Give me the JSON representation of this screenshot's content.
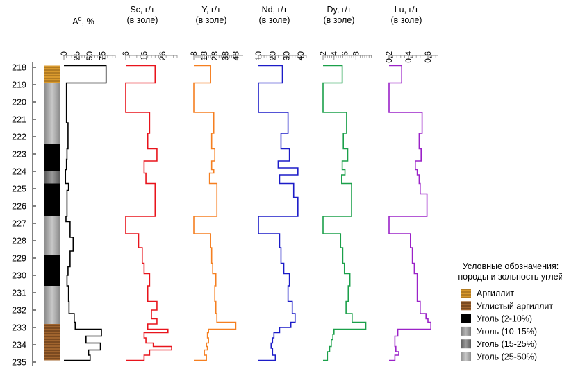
{
  "depth_axis": {
    "min": 218,
    "max": 235,
    "ticks": [
      218,
      219,
      220,
      221,
      222,
      223,
      224,
      225,
      226,
      227,
      228,
      229,
      230,
      231,
      232,
      233,
      234,
      235
    ]
  },
  "chart_data": [
    {
      "type": "line",
      "panel": "ash",
      "title_main": "A",
      "title_sup": "d",
      "title_rest": ", %",
      "title_line2": "",
      "color": "#000000",
      "xlim": [
        0,
        100
      ],
      "ticks": [
        "0",
        "25",
        "50",
        "75"
      ],
      "tick_values": [
        0,
        25,
        50,
        75
      ],
      "ylabel": "",
      "series": [
        {
          "y": [
            217.9,
            218.9,
            221.2,
            222.7,
            223.3,
            223.9,
            224.7,
            225.1,
            226.6,
            226.9,
            227.8,
            228.6,
            229.5,
            230.0,
            230.6,
            231.5,
            232.2,
            232.7,
            233.1,
            233.5,
            233.9,
            234.3,
            234.6,
            234.9
          ],
          "x": [
            82,
            5,
            8,
            6,
            5,
            3,
            9,
            6,
            4,
            12,
            18,
            12,
            8,
            6,
            9,
            10,
            20,
            22,
            73,
            43,
            71,
            48,
            51,
            46
          ]
        }
      ]
    },
    {
      "type": "line",
      "panel": "Sc",
      "title_main": "Sc, г/т",
      "title_line2": "(в золе)",
      "color": "#e8141c",
      "xlim": [
        6,
        34
      ],
      "ticks": [
        "6",
        "16",
        "26"
      ],
      "tick_values": [
        6,
        16,
        26
      ],
      "series": [
        {
          "y": [
            217.9,
            218.9,
            220.6,
            221.8,
            222.7,
            223.4,
            224.1,
            224.7,
            226.6,
            227.6,
            228.4,
            229.3,
            229.9,
            230.6,
            231.5,
            232.0,
            232.5,
            232.8,
            233.1,
            233.3,
            233.6,
            233.9,
            234.1,
            234.3,
            234.6,
            234.9
          ],
          "x": [
            22,
            6,
            19,
            18,
            23,
            16,
            17,
            22,
            6,
            13,
            15,
            16,
            19,
            18,
            23,
            20,
            23,
            18,
            29,
            16,
            17,
            21,
            31,
            19,
            16,
            16
          ]
        }
      ]
    },
    {
      "type": "line",
      "panel": "Y",
      "title_main": "Y, г/т",
      "title_line2": "(в золе)",
      "color": "#f57f20",
      "xlim": [
        8,
        55
      ],
      "ticks": [
        "8",
        "18",
        "28",
        "38",
        "48"
      ],
      "tick_values": [
        8,
        18,
        28,
        38,
        48
      ],
      "series": [
        {
          "y": [
            217.9,
            218.9,
            220.6,
            221.8,
            222.7,
            223.4,
            223.9,
            224.1,
            224.7,
            226.6,
            227.6,
            228.4,
            229.3,
            229.9,
            230.6,
            231.5,
            232.2,
            232.7,
            233.1,
            233.3,
            233.6,
            233.9,
            234.1,
            234.3,
            234.6,
            234.9
          ],
          "x": [
            24,
            8,
            27,
            25,
            28,
            25,
            27,
            23,
            30,
            8,
            24,
            25,
            26,
            29,
            28,
            29,
            30,
            48,
            22,
            21,
            22,
            20,
            21,
            18,
            20,
            20
          ]
        }
      ]
    },
    {
      "type": "line",
      "panel": "Nd",
      "title_main": "Nd, г/т",
      "title_line2": "(в золе)",
      "color": "#1c1cc8",
      "xlim": [
        10,
        44
      ],
      "ticks": [
        "10",
        "20",
        "30",
        "40"
      ],
      "tick_values": [
        10,
        20,
        30,
        40
      ],
      "series": [
        {
          "y": [
            217.9,
            218.9,
            220.6,
            221.8,
            222.7,
            223.4,
            223.8,
            224.2,
            224.7,
            225.5,
            226.6,
            227.6,
            228.4,
            229.3,
            229.9,
            230.6,
            231.5,
            232.2,
            232.7,
            233.0,
            233.3,
            233.6,
            233.9,
            234.2,
            234.6,
            234.9
          ],
          "x": [
            27,
            10,
            31,
            26,
            32,
            24,
            38,
            25,
            35,
            38,
            10,
            25,
            26,
            28,
            32,
            31,
            34,
            36,
            33,
            25,
            21,
            20,
            19,
            20,
            22,
            10
          ]
        }
      ]
    },
    {
      "type": "line",
      "panel": "Dy",
      "title_main": "Dy, г/т",
      "title_line2": "(в золе)",
      "color": "#1ba04a",
      "xlim": [
        2,
        11
      ],
      "ticks": [
        "2",
        "4",
        "6",
        "8"
      ],
      "tick_values": [
        2,
        4,
        6,
        8
      ],
      "series": [
        {
          "y": [
            217.9,
            218.9,
            220.6,
            221.8,
            222.7,
            223.4,
            223.9,
            224.2,
            224.7,
            226.6,
            227.6,
            228.4,
            229.3,
            229.9,
            230.6,
            231.5,
            232.2,
            232.7,
            233.1,
            233.4,
            233.7,
            233.9,
            234.1,
            234.4,
            234.9
          ],
          "x": [
            5.5,
            2,
            6.3,
            5.7,
            6.5,
            5.5,
            6.0,
            5.4,
            7.2,
            2,
            5.2,
            5.6,
            5.9,
            6.9,
            6.6,
            6.2,
            7.3,
            9.8,
            4.0,
            3.8,
            3.5,
            3.5,
            3.2,
            2.8,
            2
          ]
        }
      ]
    },
    {
      "type": "line",
      "panel": "Lu",
      "title_main": "Lu, г/т",
      "title_line2": "(в золе)",
      "color": "#9b22c8",
      "xlim": [
        0.2,
        0.7
      ],
      "ticks": [
        "0,2",
        "0,4",
        "0,6"
      ],
      "tick_values": [
        0.2,
        0.4,
        0.6
      ],
      "series": [
        {
          "y": [
            217.9,
            218.9,
            220.6,
            221.8,
            222.7,
            223.4,
            223.9,
            224.2,
            224.7,
            225.3,
            226.6,
            227.6,
            228.4,
            229.3,
            229.9,
            230.6,
            231.5,
            232.2,
            232.5,
            232.7,
            233.1,
            233.5,
            233.8,
            234.1,
            234.4,
            234.6,
            234.9
          ],
          "x": [
            0.33,
            0.2,
            0.54,
            0.51,
            0.53,
            0.47,
            0.49,
            0.51,
            0.52,
            0.59,
            0.2,
            0.42,
            0.44,
            0.46,
            0.49,
            0.49,
            0.52,
            0.58,
            0.6,
            0.63,
            0.29,
            0.26,
            0.26,
            0.27,
            0.3,
            0.26,
            0.2
          ]
        }
      ]
    }
  ],
  "lithology": {
    "column": [
      {
        "from": 217.9,
        "to": 218.9,
        "type": "argillite"
      },
      {
        "from": 218.9,
        "to": 222.4,
        "type": "coal_25_50"
      },
      {
        "from": 222.4,
        "to": 224.0,
        "type": "coal_2_10"
      },
      {
        "from": 224.0,
        "to": 224.7,
        "type": "coal_15_25"
      },
      {
        "from": 224.7,
        "to": 226.6,
        "type": "coal_2_10"
      },
      {
        "from": 226.6,
        "to": 228.8,
        "type": "coal_25_50"
      },
      {
        "from": 228.8,
        "to": 230.6,
        "type": "coal_2_10"
      },
      {
        "from": 230.6,
        "to": 232.8,
        "type": "coal_25_50"
      },
      {
        "from": 232.8,
        "to": 234.9,
        "type": "carb_argillite"
      }
    ]
  },
  "legend": {
    "title_line1": "Условные обозначения:",
    "title_line2": "породы и зольность углей",
    "items": [
      {
        "key": "argillite",
        "label": "Аргиллит"
      },
      {
        "key": "carb_argillite",
        "label": "Углистый аргиллит"
      },
      {
        "key": "coal_2_10",
        "label": "Уголь (2-10%)"
      },
      {
        "key": "coal_10_15",
        "label": "Уголь (10-15%)"
      },
      {
        "key": "coal_15_25",
        "label": "Уголь (15-25%)"
      },
      {
        "key": "coal_25_50",
        "label": "Уголь (25-50%)"
      }
    ]
  }
}
